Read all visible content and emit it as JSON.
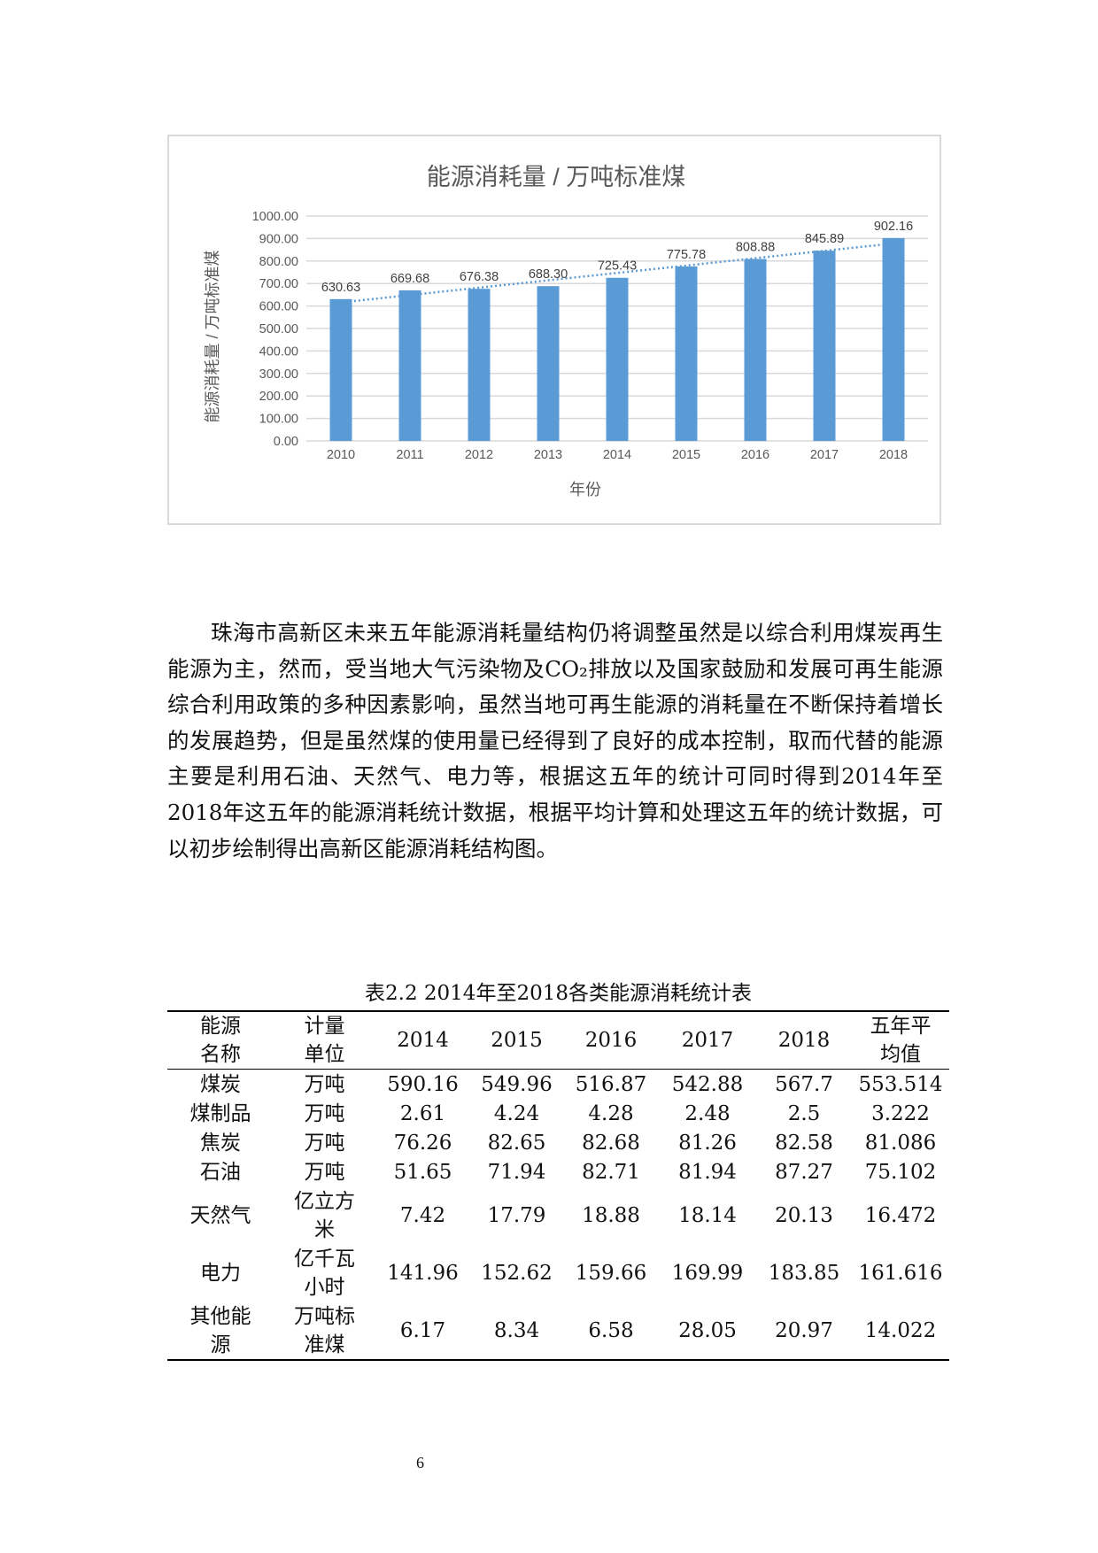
{
  "chart_data": {
    "type": "bar",
    "title": "能源消耗量 / 万吨标准煤",
    "xlabel": "年份",
    "ylabel": "能源消耗量 / 万吨标准煤",
    "categories": [
      "2010",
      "2011",
      "2012",
      "2013",
      "2014",
      "2015",
      "2016",
      "2017",
      "2018"
    ],
    "values": [
      630.63,
      669.68,
      676.38,
      688.3,
      725.43,
      775.78,
      808.88,
      845.89,
      902.16
    ],
    "data_labels": [
      "630.63",
      "669.68",
      "676.38",
      "688.30",
      "725.43",
      "775.78",
      "808.88",
      "845.89",
      "902.16"
    ],
    "ylim": [
      0,
      1000
    ],
    "yticks": [
      "0.00",
      "100.00",
      "200.00",
      "300.00",
      "400.00",
      "500.00",
      "600.00",
      "700.00",
      "800.00",
      "900.00",
      "1000.00"
    ],
    "grid": true,
    "trendline": "linear, dotted",
    "colors": {
      "bar": "#5b9bd5",
      "trendline": "#5b9bd5",
      "grid": "#d9d9d9",
      "text": "#595959"
    }
  },
  "paragraph": "珠海市高新区未来五年能源消耗量结构仍将调整虽然是以综合利用煤炭再生能源为主，然而，受当地大气污染物及CO₂排放以及国家鼓励和发展可再生能源综合利用政策的多种因素影响，虽然当地可再生能源的消耗量在不断保持着增长的发展趋势，但是虽然煤的使用量已经得到了良好的成本控制，取而代替的能源主要是利用石油、天然气、电力等，根据这五年的统计可同时得到2014年至2018年这五年的能源消耗统计数据，根据平均计算和处理这五年的统计数据，可以初步绘制得出高新区能源消耗结构图。",
  "table": {
    "caption": "表2.2 2014年至2018各类能源消耗统计表",
    "headers": [
      "能源名称",
      "计量单位",
      "2014",
      "2015",
      "2016",
      "2017",
      "2018",
      "五年平均值"
    ],
    "rows": [
      [
        "煤炭",
        "万吨",
        "590.16",
        "549.96",
        "516.87",
        "542.88",
        "567.7",
        "553.514"
      ],
      [
        "煤制品",
        "万吨",
        "2.61",
        "4.24",
        "4.28",
        "2.48",
        "2.5",
        "3.222"
      ],
      [
        "焦炭",
        "万吨",
        "76.26",
        "82.65",
        "82.68",
        "81.26",
        "82.58",
        "81.086"
      ],
      [
        "石油",
        "万吨",
        "51.65",
        "71.94",
        "82.71",
        "81.94",
        "87.27",
        "75.102"
      ],
      [
        "天然气",
        "亿立方米",
        "7.42",
        "17.79",
        "18.88",
        "18.14",
        "20.13",
        "16.472"
      ],
      [
        "电力",
        "亿千瓦小时",
        "141.96",
        "152.62",
        "159.66",
        "169.99",
        "183.85",
        "161.616"
      ],
      [
        "其他能源",
        "万吨标准煤",
        "6.17",
        "8.34",
        "6.58",
        "28.05",
        "20.97",
        "14.022"
      ]
    ]
  },
  "page_number": "6"
}
